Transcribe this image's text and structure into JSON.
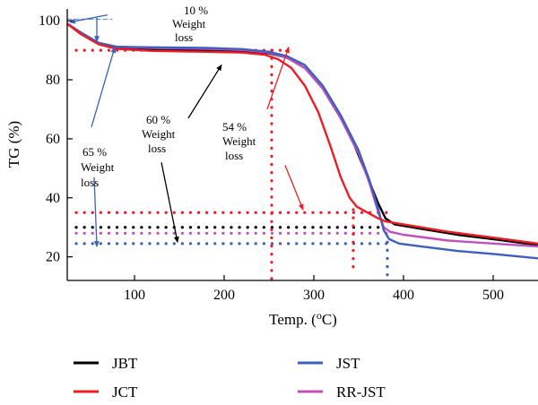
{
  "chart_data": {
    "type": "line",
    "xlabel": "Temp. (oC)",
    "xlabel_prefix": "Temp. (",
    "xlabel_sup": "o",
    "xlabel_suffix": "C)",
    "ylabel": "TG (%)",
    "xlim": [
      25,
      550
    ],
    "ylim": [
      12,
      104
    ],
    "x_ticks": [
      100,
      200,
      300,
      400,
      500
    ],
    "y_ticks": [
      20,
      40,
      60,
      80,
      100
    ],
    "grid": false,
    "legend_position": "bottom",
    "series": [
      {
        "name": "JBT",
        "color": "#000000",
        "points": [
          [
            25,
            99
          ],
          [
            40,
            96
          ],
          [
            60,
            92.5
          ],
          [
            80,
            91
          ],
          [
            120,
            90.3
          ],
          [
            180,
            90
          ],
          [
            220,
            89.7
          ],
          [
            250,
            89
          ],
          [
            270,
            87.5
          ],
          [
            290,
            84
          ],
          [
            310,
            77
          ],
          [
            330,
            67
          ],
          [
            345,
            58
          ],
          [
            360,
            47
          ],
          [
            372,
            38
          ],
          [
            380,
            33
          ],
          [
            390,
            31
          ],
          [
            420,
            29.5
          ],
          [
            460,
            27.5
          ],
          [
            500,
            26
          ],
          [
            550,
            24
          ]
        ]
      },
      {
        "name": "JCT",
        "color": "#ee1c24",
        "points": [
          [
            25,
            99
          ],
          [
            40,
            95.5
          ],
          [
            60,
            92
          ],
          [
            80,
            90.5
          ],
          [
            120,
            89.8
          ],
          [
            180,
            89.5
          ],
          [
            220,
            89.2
          ],
          [
            245,
            88.5
          ],
          [
            260,
            87
          ],
          [
            275,
            84
          ],
          [
            290,
            78
          ],
          [
            305,
            69
          ],
          [
            318,
            58
          ],
          [
            330,
            47
          ],
          [
            340,
            40
          ],
          [
            348,
            37
          ],
          [
            360,
            35
          ],
          [
            372,
            33
          ],
          [
            380,
            32
          ],
          [
            400,
            31
          ],
          [
            450,
            28.5
          ],
          [
            500,
            26.5
          ],
          [
            550,
            24.5
          ]
        ]
      },
      {
        "name": "JST",
        "color": "#3d5fbf",
        "points": [
          [
            25,
            99
          ],
          [
            40,
            96
          ],
          [
            60,
            92.5
          ],
          [
            80,
            91.2
          ],
          [
            120,
            91
          ],
          [
            180,
            90.8
          ],
          [
            220,
            90.4
          ],
          [
            250,
            89.5
          ],
          [
            270,
            88
          ],
          [
            290,
            85
          ],
          [
            310,
            78
          ],
          [
            330,
            68
          ],
          [
            350,
            56
          ],
          [
            362,
            46
          ],
          [
            372,
            36
          ],
          [
            378,
            29
          ],
          [
            384,
            26
          ],
          [
            395,
            24.5
          ],
          [
            420,
            23.5
          ],
          [
            460,
            22
          ],
          [
            500,
            21
          ],
          [
            550,
            19.5
          ]
        ]
      },
      {
        "name": "RR-JST",
        "color": "#c34fbb",
        "points": [
          [
            25,
            99
          ],
          [
            40,
            96
          ],
          [
            60,
            92.5
          ],
          [
            80,
            91.2
          ],
          [
            120,
            90.8
          ],
          [
            180,
            90.5
          ],
          [
            220,
            90.1
          ],
          [
            250,
            89.2
          ],
          [
            270,
            87.5
          ],
          [
            290,
            84
          ],
          [
            310,
            77
          ],
          [
            330,
            67
          ],
          [
            350,
            55
          ],
          [
            362,
            45
          ],
          [
            372,
            35
          ],
          [
            378,
            30
          ],
          [
            385,
            28.5
          ],
          [
            400,
            27.5
          ],
          [
            450,
            25.5
          ],
          [
            500,
            24.5
          ],
          [
            550,
            23.5
          ]
        ]
      }
    ],
    "reference_lines": [
      {
        "name": "jct-ref",
        "color": "#ee1c24",
        "y": 90,
        "x_from": 35,
        "x_to": 270
      },
      {
        "name": "jct-ref",
        "color": "#ee1c24",
        "y": 35,
        "x_from": 35,
        "x_to": 385
      },
      {
        "name": "jbt-ref",
        "color": "#000000",
        "y": 30,
        "x_from": 35,
        "x_to": 378
      },
      {
        "name": "rr-jst-ref",
        "color": "#c34fbb",
        "y": 28,
        "x_from": 35,
        "x_to": 382
      },
      {
        "name": "jst-ref",
        "color": "#3d5fbf",
        "y": 24.5,
        "x_from": 35,
        "x_to": 385
      },
      {
        "name": "jst-ref",
        "color": "#6aa0e0",
        "y": 100.5,
        "x_from": 25,
        "x_to": 75,
        "dash": "5,3"
      }
    ],
    "vertical_lines": [
      {
        "name": "jct-vertical",
        "color": "#ee1c24",
        "x": 253,
        "y_from": 90,
        "y_to": 12
      },
      {
        "name": "jct-vertical",
        "color": "#ee1c24",
        "x": 344,
        "y_from": 36,
        "y_to": 14
      },
      {
        "name": "jst-vertical",
        "color": "#3d5fbf",
        "x": 382,
        "y_from": 25,
        "y_to": 13
      }
    ],
    "annotations": [
      {
        "id": "ten",
        "lines": [
          "10 %",
          "Weight",
          "loss"
        ]
      },
      {
        "id": "sixtyfive",
        "lines": [
          "65 %",
          "Weight",
          "loss"
        ]
      },
      {
        "id": "sixty",
        "lines": [
          "60 %",
          "Weight",
          "loss"
        ]
      },
      {
        "id": "fiftyfour",
        "lines": [
          "54 %",
          "Weight",
          "loss"
        ]
      }
    ],
    "arrows": [
      {
        "name": "arrow-10-weight-loss",
        "color": "#3d5fbf",
        "from": [
          70,
          102
        ],
        "to": [
          28,
          99.5
        ]
      },
      {
        "name": "arrow-10-weight-loss-down",
        "color": "#3d5fbf",
        "from": [
          58,
          101
        ],
        "to": [
          58,
          93
        ]
      },
      {
        "name": "arrow-65-weight-loss-up",
        "color": "#3d5fbf",
        "from": [
          52,
          64
        ],
        "to": [
          78,
          91
        ]
      },
      {
        "name": "arrow-65-weight-loss-down",
        "color": "#3d5fbf",
        "from": [
          55,
          47
        ],
        "to": [
          58,
          23.5
        ]
      },
      {
        "name": "arrow-60-weight-loss-up",
        "color": "#000000",
        "from": [
          160,
          67
        ],
        "to": [
          197,
          85
        ]
      },
      {
        "name": "arrow-60-weight-loss-down",
        "color": "#000000",
        "from": [
          130,
          52
        ],
        "to": [
          148,
          25
        ]
      },
      {
        "name": "arrow-54-weight-loss-up",
        "color": "#ee1c24",
        "from": [
          248,
          70
        ],
        "to": [
          272,
          91
        ]
      },
      {
        "name": "arrow-54-weight-loss-down",
        "color": "#ee1c24",
        "from": [
          268,
          51
        ],
        "to": [
          288,
          36
        ]
      }
    ]
  }
}
